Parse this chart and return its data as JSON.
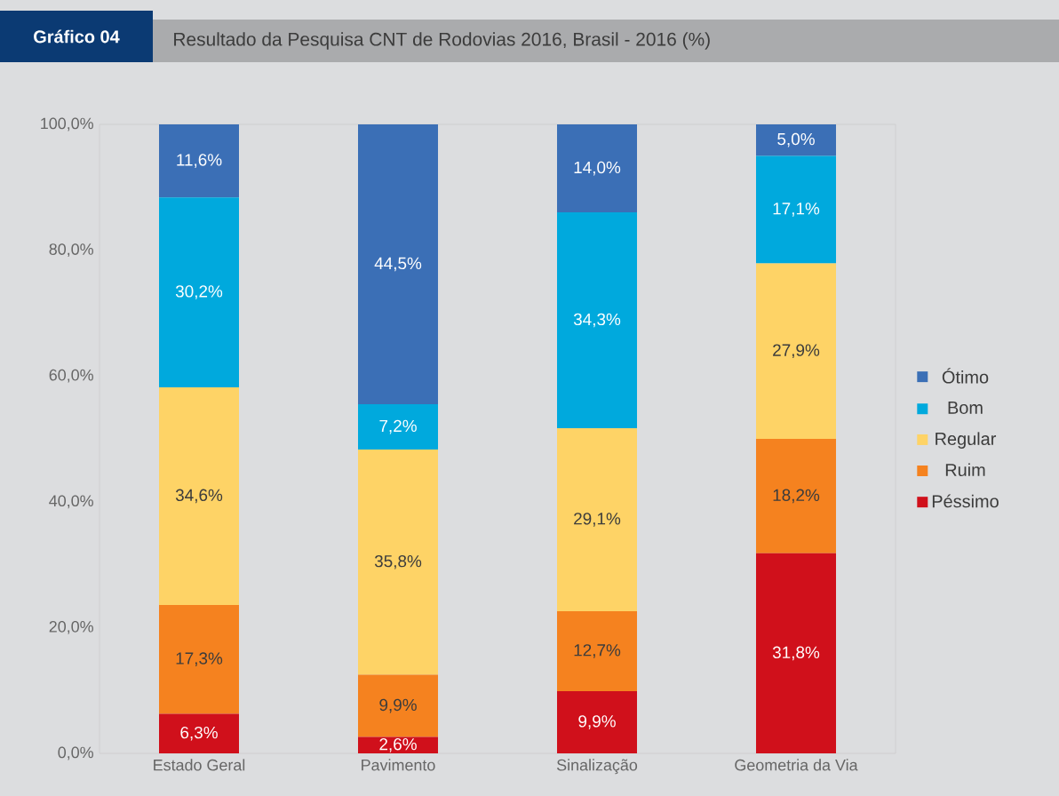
{
  "chart_data": {
    "type": "bar",
    "stacked": true,
    "title": "Resultado da Pesquisa CNT de Rodovias 2016, Brasil - 2016 (%)",
    "annotations": [
      "Gráfico 04"
    ],
    "categories": [
      "Estado Geral",
      "Pavimento",
      "Sinalização",
      "Geometria da Via"
    ],
    "series": [
      {
        "name": "Péssimo",
        "color": "#d0101b",
        "values": [
          6.3,
          2.6,
          9.9,
          31.8
        ],
        "value_labels": [
          "6,3%",
          "2,6%",
          "9,9%",
          "31,8%"
        ]
      },
      {
        "name": "Ruim",
        "color": "#f5821f",
        "values": [
          17.3,
          9.9,
          12.7,
          18.2
        ],
        "value_labels": [
          "17,3%",
          "9,9%",
          "12,7%",
          "18,2%"
        ]
      },
      {
        "name": "Regular",
        "color": "#fed366",
        "values": [
          34.6,
          35.8,
          29.1,
          27.9
        ],
        "value_labels": [
          "34,6%",
          "35,8%",
          "29,1%",
          "27,9%"
        ]
      },
      {
        "name": "Bom",
        "color": "#00a9dd",
        "values": [
          30.2,
          7.2,
          34.3,
          17.1
        ],
        "value_labels": [
          "30,2%",
          "7,2%",
          "34,3%",
          "17,1%"
        ]
      },
      {
        "name": "Ótimo",
        "color": "#3b6fb6",
        "values": [
          11.6,
          44.5,
          14.0,
          5.0
        ],
        "value_labels": [
          "11,6%",
          "44,5%",
          "14,0%",
          "5,0%"
        ]
      }
    ],
    "ylim": [
      0,
      100
    ],
    "yticks": [
      {
        "value": 0,
        "label": "0,0%"
      },
      {
        "value": 20,
        "label": "20,0%"
      },
      {
        "value": 40,
        "label": "40,0%"
      },
      {
        "value": 60,
        "label": "60,0%"
      },
      {
        "value": 80,
        "label": "80,0%"
      },
      {
        "value": 100,
        "label": "100,0%"
      }
    ],
    "legend": "right",
    "grid": false
  }
}
